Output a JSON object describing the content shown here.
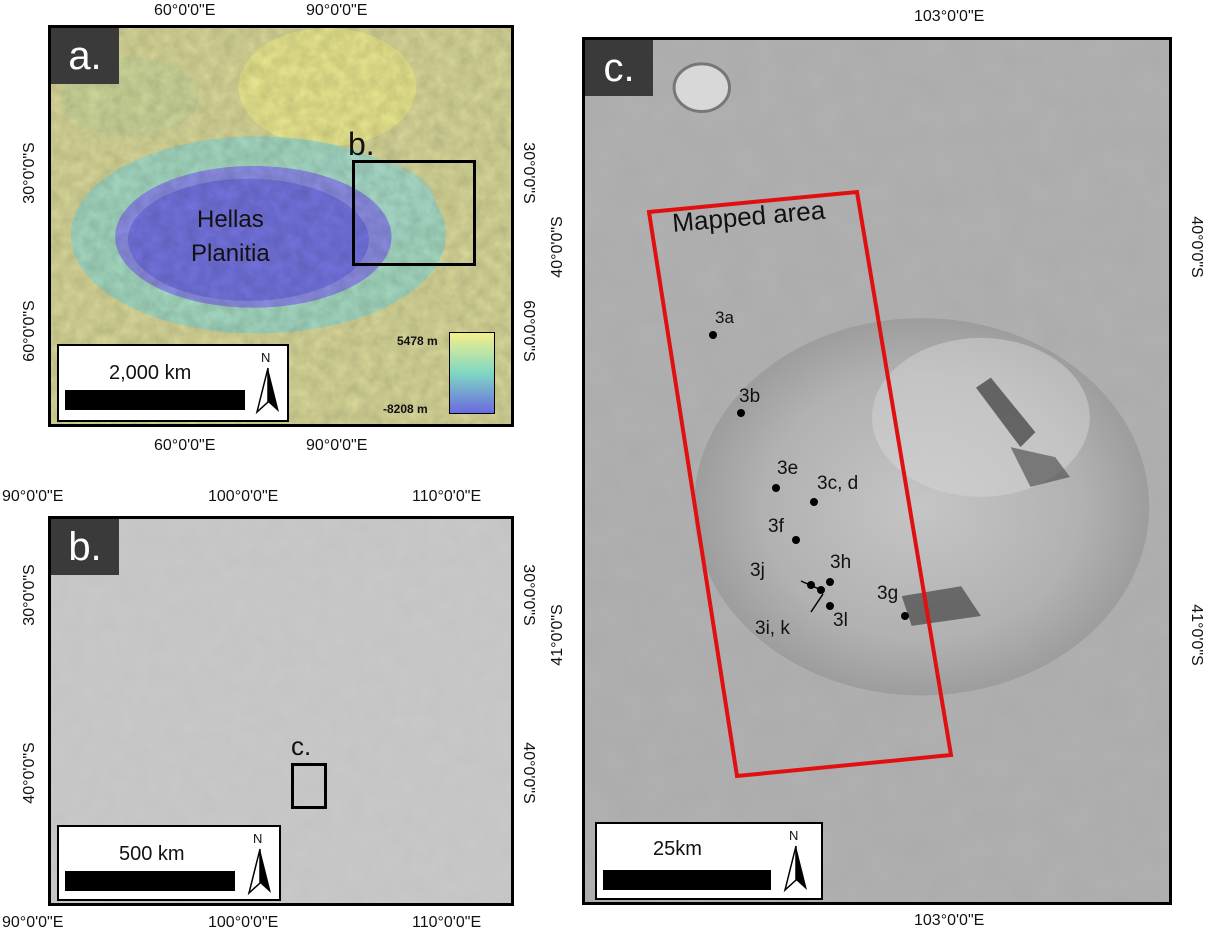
{
  "panel_a": {
    "letter": "a.",
    "feature_label_line1": "Hellas",
    "feature_label_line2": "Planitia",
    "inset_label": "b.",
    "top_ticks": [
      "60°0'0\"E",
      "90°0'0\"E"
    ],
    "bottom_ticks": [
      "60°0'0\"E",
      "90°0'0\"E"
    ],
    "left_ticks": [
      "30°0'0\"S",
      "60°0'0\"S"
    ],
    "right_ticks": [
      "30°0'0\"S",
      "60°0'0\"S"
    ],
    "scale_label": "2,000 km",
    "north_label": "N",
    "legend": {
      "max_label": "5478 m",
      "min_label": "-8208 m",
      "colors": [
        "#f4f08a",
        "#7fd8c2",
        "#6a6ae0"
      ]
    }
  },
  "panel_b": {
    "letter": "b.",
    "inset_label": "c.",
    "top_ticks": [
      "90°0'0\"E",
      "100°0'0\"E",
      "110°0'0\"E"
    ],
    "bottom_ticks": [
      "90°0'0\"E",
      "100°0'0\"E",
      "110°0'0\"E"
    ],
    "left_ticks": [
      "30°0'0\"S",
      "40°0'0\"S"
    ],
    "right_ticks": [
      "30°0'0\"S",
      "40°0'0\"S"
    ],
    "scale_label": "500 km",
    "north_label": "N"
  },
  "panel_c": {
    "letter": "c.",
    "mapped_area_label": "Mapped area",
    "mapped_area_color": "#e01010",
    "top_tick": "103°0'0\"E",
    "bottom_tick": "103°0'0\"E",
    "left_ticks": [
      "40°0'0\"S",
      "41°0'0\"S"
    ],
    "right_ticks": [
      "40°0'0\"S",
      "41°0'0\"S"
    ],
    "scale_label": "25km",
    "north_label": "N",
    "sites": [
      "3a",
      "3b",
      "3e",
      "3c, d",
      "3f",
      "3j",
      "3h",
      "3g",
      "3i, k",
      "3l"
    ]
  }
}
